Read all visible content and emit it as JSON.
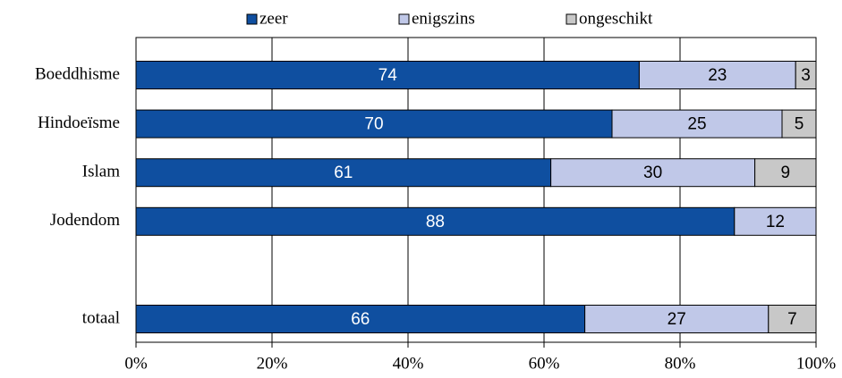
{
  "chart_data": {
    "type": "stacked-barh",
    "categories": [
      "Boeddhisme",
      "Hindoeïsme",
      "Islam",
      "Jodendom",
      null,
      "totaal"
    ],
    "series": [
      {
        "name": "zeer",
        "color": "#0f4fa0",
        "values": [
          74,
          70,
          61,
          88,
          null,
          66
        ]
      },
      {
        "name": "enigszins",
        "color": "#c0c8e8",
        "values": [
          23,
          25,
          30,
          12,
          null,
          27
        ]
      },
      {
        "name": "ongeschikt",
        "color": "#c8c8c8",
        "values": [
          3,
          5,
          9,
          null,
          null,
          7
        ]
      }
    ],
    "xlim": [
      0,
      100
    ],
    "xticks": [
      {
        "value": 0,
        "label": "0%"
      },
      {
        "value": 20,
        "label": "20%"
      },
      {
        "value": 40,
        "label": "40%"
      },
      {
        "value": 60,
        "label": "60%"
      },
      {
        "value": 80,
        "label": "80%"
      },
      {
        "value": 100,
        "label": "100%"
      }
    ],
    "grid": true,
    "legend": "top"
  }
}
